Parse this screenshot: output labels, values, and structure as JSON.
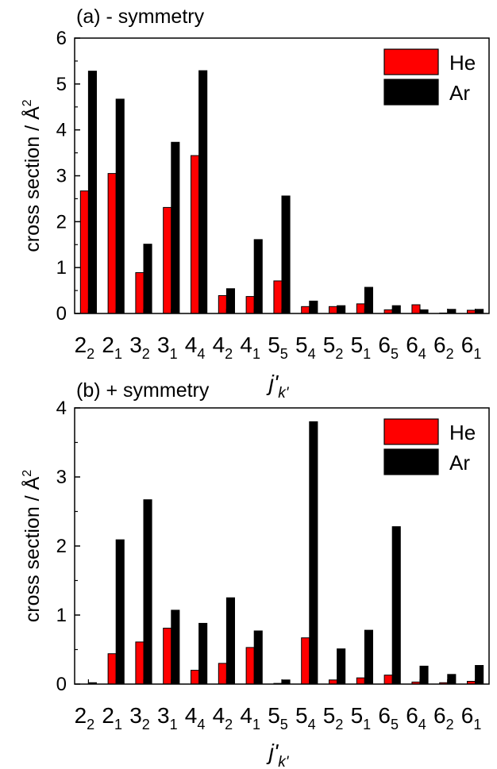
{
  "chart_data": [
    {
      "type": "bar",
      "title": "(a) - symmetry",
      "ylabel": "cross section / Å²",
      "ylabel_parts": {
        "text": "cross section / Å",
        "superscript": "2"
      },
      "xlabel": "j'k'",
      "xlabel_parts": {
        "main": "j",
        "prime": "'",
        "subscript": "k'"
      },
      "ylim": [
        0,
        6
      ],
      "yticks": [
        0,
        1,
        2,
        3,
        4,
        5,
        6
      ],
      "legend_position": "top-right",
      "categories": [
        {
          "main": "2",
          "sub": "2"
        },
        {
          "main": "2",
          "sub": "1"
        },
        {
          "main": "3",
          "sub": "2"
        },
        {
          "main": "3",
          "sub": "1"
        },
        {
          "main": "4",
          "sub": "4"
        },
        {
          "main": "4",
          "sub": "2"
        },
        {
          "main": "4",
          "sub": "1"
        },
        {
          "main": "5",
          "sub": "5"
        },
        {
          "main": "5",
          "sub": "4"
        },
        {
          "main": "5",
          "sub": "2"
        },
        {
          "main": "5",
          "sub": "1"
        },
        {
          "main": "6",
          "sub": "5"
        },
        {
          "main": "6",
          "sub": "4"
        },
        {
          "main": "6",
          "sub": "2"
        },
        {
          "main": "6",
          "sub": "1"
        }
      ],
      "series": [
        {
          "name": "He",
          "color": "#ff0000",
          "values": [
            2.67,
            3.05,
            0.89,
            2.31,
            3.44,
            0.39,
            0.37,
            0.71,
            0.15,
            0.15,
            0.21,
            0.08,
            0.19,
            0.01,
            0.07
          ]
        },
        {
          "name": "Ar",
          "color": "#000000",
          "values": [
            5.28,
            4.67,
            1.51,
            3.73,
            5.29,
            0.54,
            1.61,
            2.56,
            0.27,
            0.17,
            0.57,
            0.17,
            0.08,
            0.09,
            0.09
          ]
        }
      ]
    },
    {
      "type": "bar",
      "title": "(b) + symmetry",
      "ylabel": "cross section / Å²",
      "ylabel_parts": {
        "text": "cross section / Å",
        "superscript": "2"
      },
      "xlabel": "j'k'",
      "xlabel_parts": {
        "main": "j",
        "prime": "'",
        "subscript": "k'"
      },
      "ylim": [
        0,
        4
      ],
      "yticks": [
        0,
        1,
        2,
        3,
        4
      ],
      "legend_position": "top-right",
      "categories": [
        {
          "main": "2",
          "sub": "2"
        },
        {
          "main": "2",
          "sub": "1"
        },
        {
          "main": "3",
          "sub": "2"
        },
        {
          "main": "3",
          "sub": "1"
        },
        {
          "main": "4",
          "sub": "4"
        },
        {
          "main": "4",
          "sub": "2"
        },
        {
          "main": "4",
          "sub": "1"
        },
        {
          "main": "5",
          "sub": "5"
        },
        {
          "main": "5",
          "sub": "4"
        },
        {
          "main": "5",
          "sub": "2"
        },
        {
          "main": "5",
          "sub": "1"
        },
        {
          "main": "6",
          "sub": "5"
        },
        {
          "main": "6",
          "sub": "4"
        },
        {
          "main": "6",
          "sub": "2"
        },
        {
          "main": "6",
          "sub": "1"
        }
      ],
      "series": [
        {
          "name": "He",
          "color": "#ff0000",
          "values": [
            0.0,
            0.44,
            0.61,
            0.81,
            0.2,
            0.3,
            0.53,
            0.01,
            0.67,
            0.06,
            0.09,
            0.13,
            0.03,
            0.02,
            0.04
          ]
        },
        {
          "name": "Ar",
          "color": "#000000",
          "values": [
            0.02,
            2.09,
            2.67,
            1.07,
            0.88,
            1.25,
            0.77,
            0.06,
            3.8,
            0.51,
            0.78,
            2.28,
            0.26,
            0.14,
            0.27
          ]
        }
      ]
    }
  ]
}
